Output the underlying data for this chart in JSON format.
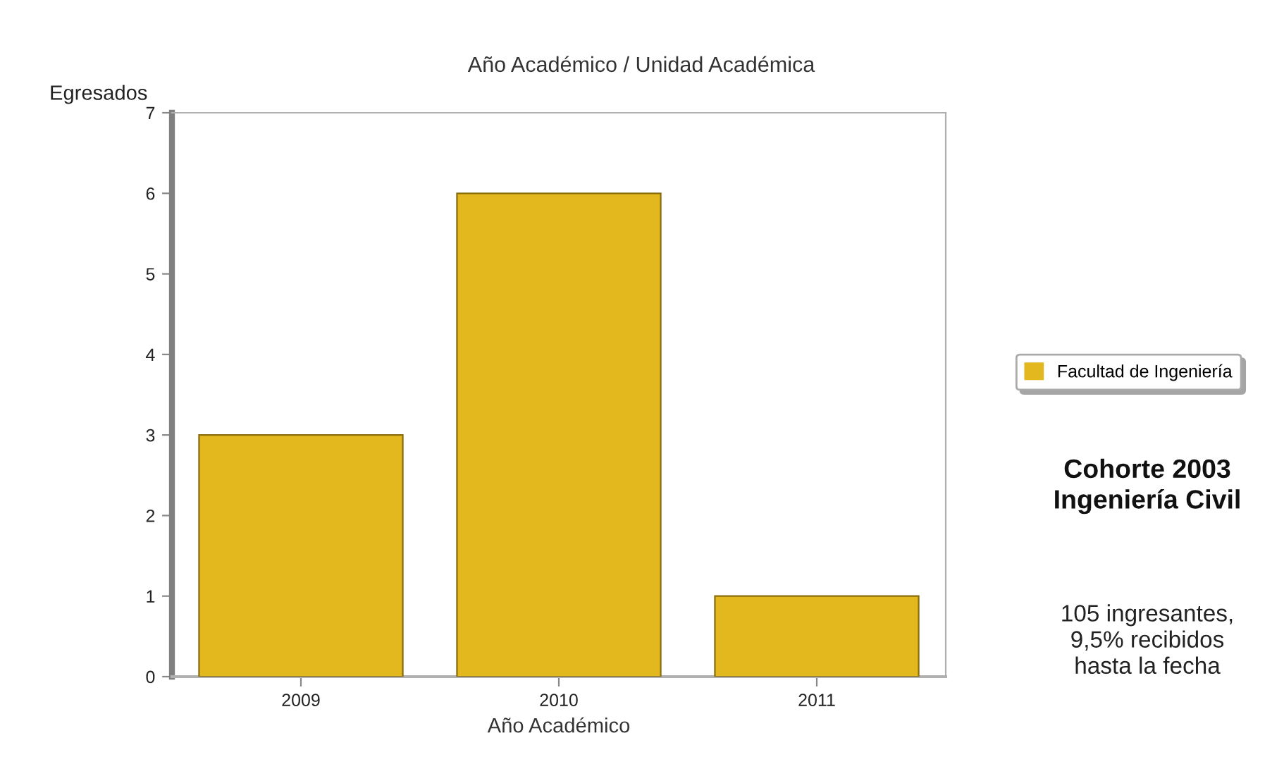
{
  "chart_data": {
    "type": "bar",
    "title": "Año Académico / Unidad Académica",
    "xlabel": "Año Académico",
    "ylabel": "Egresados",
    "categories": [
      "2009",
      "2010",
      "2011"
    ],
    "series": [
      {
        "name": "Facultad de Ingeniería",
        "color": "#e3b81f",
        "values": [
          3,
          6,
          1
        ]
      }
    ],
    "ylim": [
      0,
      7
    ],
    "yticks": [
      0,
      1,
      2,
      3,
      4,
      5,
      6,
      7
    ],
    "grid": false,
    "legend": "right",
    "annotations": [
      "Cohorte 2003\nIngeniería Civil",
      "105 ingresantes,\n9,5% recibidos\nhasta la fecha"
    ]
  }
}
